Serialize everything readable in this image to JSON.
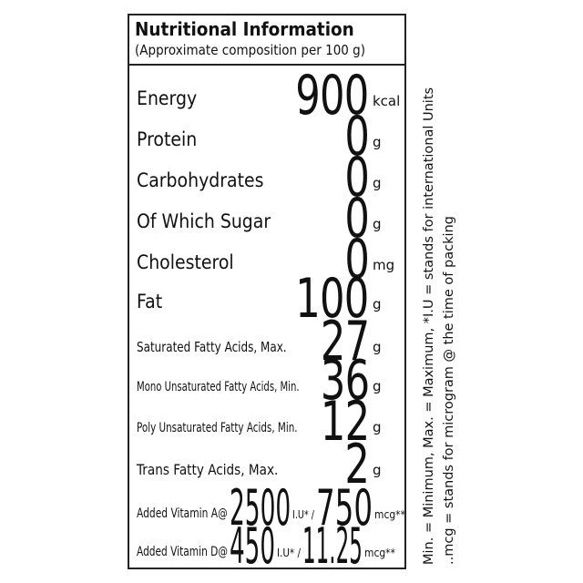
{
  "header": {
    "title": "Nutritional Information",
    "subtitle": "(Approximate composition per 100 g)"
  },
  "rows": [
    {
      "label": "Energy",
      "value": "900",
      "unit": "kcal"
    },
    {
      "label": "Protein",
      "value": "0",
      "unit": "g"
    },
    {
      "label": "Carbohydrates",
      "value": "0",
      "unit": "g"
    },
    {
      "label": "Of Which Sugar",
      "value": "0",
      "unit": "g"
    },
    {
      "label": "Cholesterol",
      "value": "0",
      "unit": "mg"
    },
    {
      "label": "Fat",
      "value": "100",
      "unit": "g"
    },
    {
      "label": "Saturated Fatty Acids, Max.",
      "value": "27",
      "unit": "g"
    },
    {
      "label": "Mono Unsaturated Fatty Acids, Min.",
      "value": "36",
      "unit": "g"
    },
    {
      "label": "Poly Unsaturated Fatty Acids, Min.",
      "value": "12",
      "unit": "g"
    },
    {
      "label": "Trans Fatty Acids, Max.",
      "value": "2",
      "unit": "g"
    }
  ],
  "vitamins": [
    {
      "label": "Added Vitamin A@",
      "iu_value": "2500",
      "iu_unit": "I.U* /",
      "mcg_value": "750",
      "mcg_unit": "mcg**"
    },
    {
      "label": "Added Vitamin D@",
      "iu_value": "450",
      "iu_unit": "I.U* /",
      "mcg_value": "11.25",
      "mcg_unit": "mcg**"
    }
  ],
  "notes": {
    "line1": "Min. = Minimum, Max. = Maximum, *I.U = stands for international Units",
    "line2": "..mcg = stands for microgram @ the time of packing"
  }
}
